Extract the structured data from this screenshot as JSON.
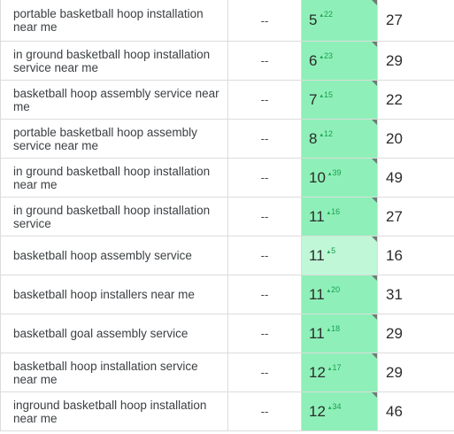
{
  "rows": [
    {
      "keyword": "portable basketball hoop installation near me",
      "col2": "--",
      "rank": "5",
      "delta": "22",
      "vol": "27",
      "shade": "dark"
    },
    {
      "keyword": "in ground basketball hoop installation service near me",
      "col2": "--",
      "rank": "6",
      "delta": "23",
      "vol": "29",
      "shade": "dark"
    },
    {
      "keyword": "basketball hoop assembly service near me",
      "col2": "--",
      "rank": "7",
      "delta": "15",
      "vol": "22",
      "shade": "dark"
    },
    {
      "keyword": "portable basketball hoop assembly service near me",
      "col2": "--",
      "rank": "8",
      "delta": "12",
      "vol": "20",
      "shade": "dark"
    },
    {
      "keyword": "in ground basketball hoop installation near me",
      "col2": "--",
      "rank": "10",
      "delta": "39",
      "vol": "49",
      "shade": "dark"
    },
    {
      "keyword": "in ground basketball hoop installation service",
      "col2": "--",
      "rank": "11",
      "delta": "16",
      "vol": "27",
      "shade": "dark"
    },
    {
      "keyword": "basketball hoop assembly service",
      "col2": "--",
      "rank": "11",
      "delta": "5",
      "vol": "16",
      "shade": "light"
    },
    {
      "keyword": "basketball hoop installers near me",
      "col2": "--",
      "rank": "11",
      "delta": "20",
      "vol": "31",
      "shade": "dark"
    },
    {
      "keyword": "basketball goal assembly service",
      "col2": "--",
      "rank": "11",
      "delta": "18",
      "vol": "29",
      "shade": "dark"
    },
    {
      "keyword": "basketball hoop installation service near me",
      "col2": "--",
      "rank": "12",
      "delta": "17",
      "vol": "29",
      "shade": "dark"
    },
    {
      "keyword": "inground basketball hoop installation near me",
      "col2": "--",
      "rank": "12",
      "delta": "34",
      "vol": "46",
      "shade": "dark"
    }
  ]
}
